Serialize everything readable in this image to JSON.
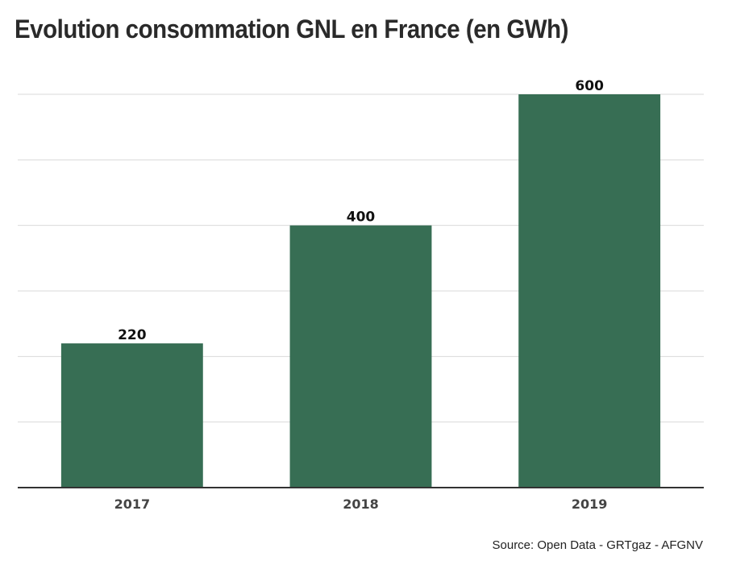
{
  "title": "Evolution consommation GNL en France (en GWh)",
  "source": "Source: Open Data - GRTgaz - AFGNV",
  "colors": {
    "bar": "#376e54",
    "grid": "#d9d9d9",
    "axis": "#333333"
  },
  "chart_data": {
    "type": "bar",
    "title": "Evolution consommation GNL en France (en GWh)",
    "xlabel": "",
    "ylabel": "",
    "categories": [
      "2017",
      "2018",
      "2019"
    ],
    "values": [
      220,
      400,
      600
    ],
    "data_labels": [
      "220",
      "400",
      "600"
    ],
    "ylim": [
      0,
      600
    ],
    "grid": true,
    "y_tick_labels_shown": false,
    "legend": "none"
  }
}
